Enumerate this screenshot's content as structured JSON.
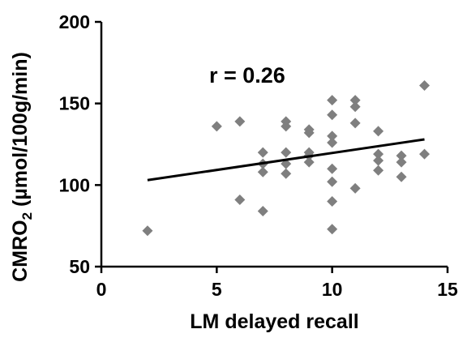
{
  "chart_data": {
    "type": "scatter",
    "title": "",
    "xlabel": "LM delayed recall",
    "ylabel_main": "CMRO",
    "ylabel_sub": "2",
    "ylabel_rest": " (µmol/100g/min)",
    "xlim": [
      0,
      15
    ],
    "ylim": [
      50,
      200
    ],
    "x_ticks": [
      "0",
      "5",
      "10",
      "15"
    ],
    "y_ticks": [
      "50",
      "100",
      "150",
      "200"
    ],
    "annotation": "r = 0.26",
    "marker_color": "#7f7f7f",
    "line_color": "#000000",
    "points": [
      {
        "x": 2,
        "y": 72
      },
      {
        "x": 5,
        "y": 136
      },
      {
        "x": 6,
        "y": 139
      },
      {
        "x": 6,
        "y": 91
      },
      {
        "x": 7,
        "y": 120
      },
      {
        "x": 7,
        "y": 113
      },
      {
        "x": 7,
        "y": 108
      },
      {
        "x": 7,
        "y": 84
      },
      {
        "x": 8,
        "y": 139
      },
      {
        "x": 8,
        "y": 136
      },
      {
        "x": 8,
        "y": 120
      },
      {
        "x": 8,
        "y": 113
      },
      {
        "x": 8,
        "y": 107
      },
      {
        "x": 9,
        "y": 134
      },
      {
        "x": 9,
        "y": 132
      },
      {
        "x": 9,
        "y": 120
      },
      {
        "x": 9,
        "y": 118
      },
      {
        "x": 9,
        "y": 114
      },
      {
        "x": 10,
        "y": 152
      },
      {
        "x": 10,
        "y": 143
      },
      {
        "x": 10,
        "y": 130
      },
      {
        "x": 10,
        "y": 126
      },
      {
        "x": 10,
        "y": 110
      },
      {
        "x": 10,
        "y": 102
      },
      {
        "x": 10,
        "y": 90
      },
      {
        "x": 10,
        "y": 73
      },
      {
        "x": 11,
        "y": 152
      },
      {
        "x": 11,
        "y": 148
      },
      {
        "x": 11,
        "y": 138
      },
      {
        "x": 11,
        "y": 98
      },
      {
        "x": 12,
        "y": 133
      },
      {
        "x": 12,
        "y": 119
      },
      {
        "x": 12,
        "y": 115
      },
      {
        "x": 12,
        "y": 109
      },
      {
        "x": 13,
        "y": 118
      },
      {
        "x": 13,
        "y": 114
      },
      {
        "x": 13,
        "y": 105
      },
      {
        "x": 14,
        "y": 161
      },
      {
        "x": 14,
        "y": 119
      }
    ],
    "trendline": {
      "x": [
        2,
        14
      ],
      "y": [
        103,
        128
      ]
    }
  }
}
